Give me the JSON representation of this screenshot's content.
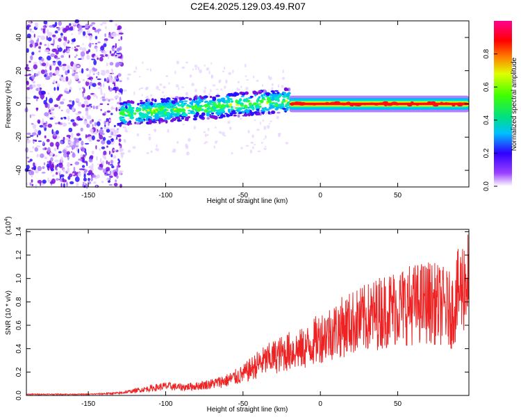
{
  "figure_title": "C2E4.2025.129.03.49.R07",
  "chart_data": [
    {
      "type": "heatmap",
      "title": "",
      "xlabel": "Height of straight line (km)",
      "ylabel": "Frequency (Hz)",
      "xlim": [
        -190,
        96
      ],
      "ylim": [
        -50,
        50
      ],
      "x_ticks": [
        -150,
        -100,
        -50,
        0,
        50
      ],
      "y_ticks": [
        -40,
        -20,
        0,
        20,
        40
      ],
      "x_tick_labels": [
        "-150",
        "-100",
        "-50",
        "0",
        "50"
      ],
      "y_tick_labels": [
        "-40",
        "-20",
        "0",
        "20",
        "40"
      ],
      "colorbar": {
        "label": "Normalized spectral amplitude",
        "range": [
          0,
          1
        ],
        "ticks": [
          0.0,
          0.2,
          0.4,
          0.6,
          0.8
        ],
        "tick_labels": [
          "0.0",
          "0.2",
          "0.4",
          "0.6",
          "0.8"
        ],
        "colormap": [
          "#ffffff",
          "#7a00e6",
          "#0000ff",
          "#00e6e6",
          "#00e600",
          "#ffff00",
          "#ff8000",
          "#ff0000",
          "#ff00a0"
        ]
      },
      "regions": [
        {
          "x_range": [
            -190,
            -130
          ],
          "freq_range": [
            -50,
            50
          ],
          "amplitude": 0.1,
          "description_level": "noise"
        },
        {
          "x_range": [
            -130,
            -20
          ],
          "freq_center_start": -6,
          "freq_center_end": 2,
          "amplitude": 0.3
        },
        {
          "x_range": [
            -20,
            96
          ],
          "freq_center": 0,
          "amplitude": 0.85
        }
      ]
    },
    {
      "type": "line",
      "title": "",
      "xlabel": "Height of straight line (km)",
      "ylabel": "SNR (10 * v/v)",
      "y_multiplier_label": "(x10",
      "y_multiplier_exp": "4",
      "y_multiplier_close": ")",
      "xlim": [
        -190,
        96
      ],
      "ylim": [
        0,
        1.42
      ],
      "x_ticks": [
        -150,
        -100,
        -50,
        0,
        50
      ],
      "y_ticks": [
        0.0,
        0.2,
        0.4,
        0.6,
        0.8,
        1.0,
        1.2,
        1.4
      ],
      "x_tick_labels": [
        "-150",
        "-100",
        "-50",
        "0",
        "50"
      ],
      "y_tick_labels": [
        "0.0",
        "0.2",
        "0.4",
        "0.6",
        "0.8",
        "1.0",
        "1.2",
        "1.4"
      ],
      "series": [
        {
          "color": "#ee2222",
          "x": [
            -190,
            -150,
            -130,
            -120,
            -110,
            -100,
            -90,
            -80,
            -70,
            -60,
            -50,
            -40,
            -30,
            -20,
            -10,
            0,
            10,
            20,
            30,
            40,
            50,
            60,
            70,
            80,
            85,
            90,
            95
          ],
          "y": [
            0.01,
            0.01,
            0.02,
            0.04,
            0.06,
            0.08,
            0.07,
            0.08,
            0.1,
            0.13,
            0.18,
            0.27,
            0.33,
            0.38,
            0.4,
            0.5,
            0.56,
            0.62,
            0.66,
            0.72,
            0.76,
            0.78,
            0.8,
            0.76,
            0.72,
            0.9,
            1.0
          ]
        }
      ]
    }
  ]
}
